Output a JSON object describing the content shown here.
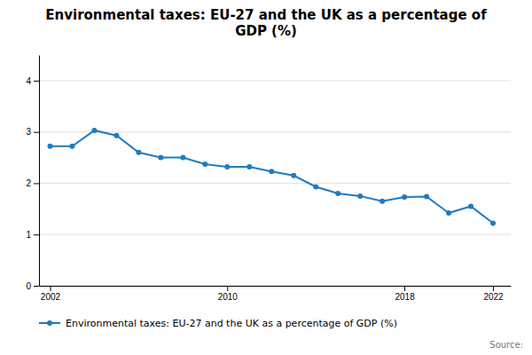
{
  "chart_data": {
    "type": "line",
    "title": "Environmental taxes: EU-27 and the UK as a percentage of\nGDP (%)",
    "x": [
      2002,
      2003,
      2004,
      2005,
      2006,
      2007,
      2008,
      2009,
      2010,
      2011,
      2012,
      2013,
      2014,
      2015,
      2016,
      2017,
      2018,
      2019,
      2020,
      2021,
      2022
    ],
    "series": [
      {
        "name": "Environmental taxes: EU-27 and the UK as a percentage of GDP (%)",
        "color": "#1f7bbf",
        "marker": "circle",
        "values": [
          2.72,
          2.72,
          3.03,
          2.93,
          2.6,
          2.5,
          2.5,
          2.37,
          2.32,
          2.32,
          2.23,
          2.15,
          1.93,
          1.8,
          1.75,
          1.65,
          1.73,
          1.74,
          1.42,
          1.55,
          1.22
        ]
      }
    ],
    "xlim": [
      2001.5,
      2022.8
    ],
    "xticks": [
      2002,
      2010,
      2018,
      2022
    ],
    "ylim": [
      0,
      4.5
    ],
    "yticks": [
      0,
      1,
      2,
      3,
      4
    ],
    "grid": true,
    "legend": "bottom",
    "annotations": [
      "Source:"
    ]
  }
}
